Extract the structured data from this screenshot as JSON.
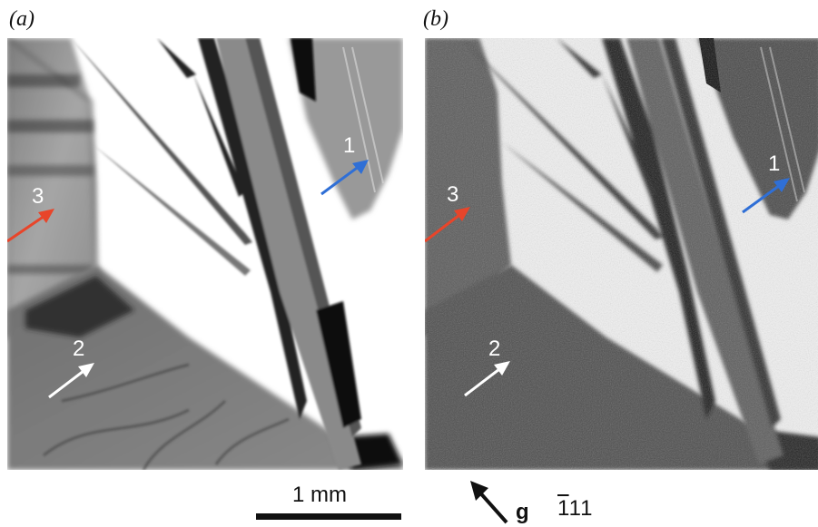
{
  "panels": [
    {
      "id": "a",
      "label": "(a)"
    },
    {
      "id": "b",
      "label": "(b)"
    }
  ],
  "markers": {
    "m1": {
      "text": "1",
      "color": "#2f6fd6"
    },
    "m2": {
      "text": "2",
      "color": "#ffffff"
    },
    "m3": {
      "text": "3",
      "color": "#e8452a"
    }
  },
  "scale_bar": {
    "label": "1 mm"
  },
  "diffraction_vector": {
    "symbol": "g",
    "bar_digit": "1",
    "rest": "11"
  }
}
